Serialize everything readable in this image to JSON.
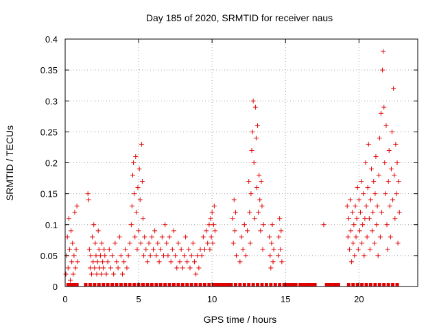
{
  "chart_data": {
    "type": "scatter",
    "title": "Day 185 of 2020, SRMTID for receiver naus",
    "xlabel": "GPS time / hours",
    "ylabel": "SRMTID / TECUs",
    "xlim": [
      0,
      24
    ],
    "ylim": [
      0,
      0.4
    ],
    "xticks": [
      0,
      5,
      10,
      15,
      20
    ],
    "yticks": [
      0,
      0.05,
      0.1,
      0.15,
      0.2,
      0.25,
      0.3,
      0.35,
      0.4
    ],
    "xtick_labels": [
      "0",
      "5",
      "10",
      "15",
      "20"
    ],
    "ytick_labels": [
      "0",
      "0.05",
      "0.1",
      "0.15",
      "0.2",
      "0.25",
      "0.3",
      "0.35",
      "0.4"
    ],
    "grid": true,
    "marker": "+",
    "color": "#e00000",
    "series": [
      {
        "name": "SRMTID",
        "points": [
          [
            0.05,
            0.02
          ],
          [
            0.1,
            0.05
          ],
          [
            0.15,
            0.08
          ],
          [
            0.2,
            0.03
          ],
          [
            0.25,
            0.11
          ],
          [
            0.3,
            0.06
          ],
          [
            0.35,
            0.01
          ],
          [
            0.4,
            0.09
          ],
          [
            0.45,
            0.04
          ],
          [
            0.5,
            0.07
          ],
          [
            0.55,
            0.02
          ],
          [
            0.6,
            0.05
          ],
          [
            0.65,
            0.12
          ],
          [
            0.7,
            0.03
          ],
          [
            0.75,
            0.06
          ],
          [
            0.8,
            0.13
          ],
          [
            0.85,
            0.04
          ],
          [
            1.55,
            0.15
          ],
          [
            1.6,
            0.14
          ],
          [
            1.65,
            0.06
          ],
          [
            1.7,
            0.03
          ],
          [
            1.75,
            0.05
          ],
          [
            1.8,
            0.02
          ],
          [
            1.85,
            0.08
          ],
          [
            1.9,
            0.04
          ],
          [
            1.95,
            0.1
          ],
          [
            2.0,
            0.03
          ],
          [
            2.05,
            0.07
          ],
          [
            2.1,
            0.05
          ],
          [
            2.15,
            0.02
          ],
          [
            2.2,
            0.04
          ],
          [
            2.25,
            0.09
          ],
          [
            2.3,
            0.06
          ],
          [
            2.35,
            0.03
          ],
          [
            2.4,
            0.05
          ],
          [
            2.45,
            0.02
          ],
          [
            2.5,
            0.07
          ],
          [
            2.55,
            0.04
          ],
          [
            2.6,
            0.03
          ],
          [
            2.65,
            0.06
          ],
          [
            2.7,
            0.05
          ],
          [
            2.8,
            0.02
          ],
          [
            2.9,
            0.04
          ],
          [
            3.0,
            0.06
          ],
          [
            3.1,
            0.03
          ],
          [
            3.2,
            0.05
          ],
          [
            3.3,
            0.02
          ],
          [
            3.4,
            0.07
          ],
          [
            3.5,
            0.04
          ],
          [
            3.6,
            0.03
          ],
          [
            3.7,
            0.08
          ],
          [
            3.8,
            0.05
          ],
          [
            3.9,
            0.02
          ],
          [
            4.0,
            0.04
          ],
          [
            4.1,
            0.06
          ],
          [
            4.2,
            0.03
          ],
          [
            4.3,
            0.05
          ],
          [
            4.4,
            0.07
          ],
          [
            4.5,
            0.1
          ],
          [
            4.55,
            0.13
          ],
          [
            4.6,
            0.18
          ],
          [
            4.65,
            0.2
          ],
          [
            4.7,
            0.15
          ],
          [
            4.75,
            0.08
          ],
          [
            4.8,
            0.21
          ],
          [
            4.85,
            0.12
          ],
          [
            4.9,
            0.06
          ],
          [
            4.95,
            0.16
          ],
          [
            5.0,
            0.09
          ],
          [
            5.05,
            0.19
          ],
          [
            5.1,
            0.14
          ],
          [
            5.15,
            0.07
          ],
          [
            5.2,
            0.23
          ],
          [
            5.25,
            0.17
          ],
          [
            5.3,
            0.11
          ],
          [
            5.35,
            0.05
          ],
          [
            5.4,
            0.08
          ],
          [
            5.5,
            0.06
          ],
          [
            5.6,
            0.04
          ],
          [
            5.7,
            0.07
          ],
          [
            5.8,
            0.05
          ],
          [
            5.9,
            0.08
          ],
          [
            6.0,
            0.06
          ],
          [
            6.1,
            0.09
          ],
          [
            6.2,
            0.05
          ],
          [
            6.3,
            0.07
          ],
          [
            6.4,
            0.04
          ],
          [
            6.5,
            0.06
          ],
          [
            6.6,
            0.08
          ],
          [
            6.7,
            0.05
          ],
          [
            6.8,
            0.1
          ],
          [
            6.9,
            0.07
          ],
          [
            7.0,
            0.05
          ],
          [
            7.1,
            0.08
          ],
          [
            7.2,
            0.04
          ],
          [
            7.3,
            0.06
          ],
          [
            7.4,
            0.09
          ],
          [
            7.5,
            0.05
          ],
          [
            7.6,
            0.03
          ],
          [
            7.7,
            0.07
          ],
          [
            7.8,
            0.04
          ],
          [
            7.9,
            0.06
          ],
          [
            8.0,
            0.03
          ],
          [
            8.1,
            0.05
          ],
          [
            8.2,
            0.08
          ],
          [
            8.3,
            0.04
          ],
          [
            8.4,
            0.06
          ],
          [
            8.5,
            0.03
          ],
          [
            8.6,
            0.05
          ],
          [
            8.7,
            0.07
          ],
          [
            8.8,
            0.04
          ],
          [
            8.9,
            0.02
          ],
          [
            9.0,
            0.05
          ],
          [
            9.1,
            0.03
          ],
          [
            9.2,
            0.06
          ],
          [
            9.3,
            0.05
          ],
          [
            9.4,
            0.08
          ],
          [
            9.5,
            0.06
          ],
          [
            9.6,
            0.09
          ],
          [
            9.7,
            0.07
          ],
          [
            9.8,
            0.1
          ],
          [
            9.85,
            0.06
          ],
          [
            9.9,
            0.11
          ],
          [
            9.95,
            0.08
          ],
          [
            10.0,
            0.12
          ],
          [
            10.05,
            0.07
          ],
          [
            10.1,
            0.1
          ],
          [
            10.15,
            0.13
          ],
          [
            10.2,
            0.09
          ],
          [
            11.4,
            0.11
          ],
          [
            11.45,
            0.07
          ],
          [
            11.5,
            0.14
          ],
          [
            11.55,
            0.09
          ],
          [
            11.6,
            0.12
          ],
          [
            11.65,
            0.05
          ],
          [
            11.9,
            0.04
          ],
          [
            12.0,
            0.08
          ],
          [
            12.1,
            0.06
          ],
          [
            12.2,
            0.1
          ],
          [
            12.3,
            0.05
          ],
          [
            12.4,
            0.09
          ],
          [
            12.5,
            0.17
          ],
          [
            12.55,
            0.12
          ],
          [
            12.6,
            0.07
          ],
          [
            12.65,
            0.15
          ],
          [
            12.7,
            0.22
          ],
          [
            12.75,
            0.25
          ],
          [
            12.8,
            0.3
          ],
          [
            12.85,
            0.2
          ],
          [
            12.9,
            0.11
          ],
          [
            12.95,
            0.29
          ],
          [
            13.0,
            0.24
          ],
          [
            13.05,
            0.16
          ],
          [
            13.1,
            0.26
          ],
          [
            13.15,
            0.12
          ],
          [
            13.2,
            0.18
          ],
          [
            13.25,
            0.14
          ],
          [
            13.3,
            0.09
          ],
          [
            13.35,
            0.17
          ],
          [
            13.4,
            0.13
          ],
          [
            13.45,
            0.06
          ],
          [
            13.5,
            0.1
          ],
          [
            13.9,
            0.08
          ],
          [
            13.95,
            0.05
          ],
          [
            14.0,
            0.03
          ],
          [
            14.05,
            0.07
          ],
          [
            14.1,
            0.1
          ],
          [
            14.15,
            0.04
          ],
          [
            14.2,
            0.06
          ],
          [
            14.5,
            0.05
          ],
          [
            14.55,
            0.08
          ],
          [
            14.6,
            0.11
          ],
          [
            14.65,
            0.06
          ],
          [
            14.7,
            0.09
          ],
          [
            14.75,
            0.04
          ],
          [
            17.6,
            0.1
          ],
          [
            19.2,
            0.13
          ],
          [
            19.25,
            0.08
          ],
          [
            19.3,
            0.11
          ],
          [
            19.35,
            0.06
          ],
          [
            19.4,
            0.14
          ],
          [
            19.45,
            0.09
          ],
          [
            19.5,
            0.04
          ],
          [
            19.55,
            0.12
          ],
          [
            19.6,
            0.07
          ],
          [
            19.65,
            0.1
          ],
          [
            19.7,
            0.05
          ],
          [
            19.75,
            0.13
          ],
          [
            19.8,
            0.08
          ],
          [
            19.85,
            0.11
          ],
          [
            19.9,
            0.16
          ],
          [
            19.95,
            0.06
          ],
          [
            20.0,
            0.14
          ],
          [
            20.05,
            0.09
          ],
          [
            20.1,
            0.12
          ],
          [
            20.15,
            0.17
          ],
          [
            20.2,
            0.07
          ],
          [
            20.25,
            0.1
          ],
          [
            20.3,
            0.15
          ],
          [
            20.35,
            0.05
          ],
          [
            20.4,
            0.11
          ],
          [
            20.45,
            0.2
          ],
          [
            20.5,
            0.13
          ],
          [
            20.55,
            0.08
          ],
          [
            20.6,
            0.16
          ],
          [
            20.65,
            0.23
          ],
          [
            20.7,
            0.11
          ],
          [
            20.75,
            0.06
          ],
          [
            20.8,
            0.14
          ],
          [
            20.85,
            0.19
          ],
          [
            20.9,
            0.09
          ],
          [
            20.95,
            0.12
          ],
          [
            21.0,
            0.17
          ],
          [
            21.05,
            0.07
          ],
          [
            21.1,
            0.15
          ],
          [
            21.15,
            0.21
          ],
          [
            21.2,
            0.1
          ],
          [
            21.25,
            0.13
          ],
          [
            21.3,
            0.05
          ],
          [
            21.35,
            0.18
          ],
          [
            21.4,
            0.24
          ],
          [
            21.45,
            0.08
          ],
          [
            21.5,
            0.28
          ],
          [
            21.55,
            0.12
          ],
          [
            21.6,
            0.35
          ],
          [
            21.65,
            0.38
          ],
          [
            21.7,
            0.29
          ],
          [
            21.75,
            0.2
          ],
          [
            21.8,
            0.15
          ],
          [
            21.85,
            0.26
          ],
          [
            21.9,
            0.1
          ],
          [
            21.95,
            0.06
          ],
          [
            22.0,
            0.17
          ],
          [
            22.05,
            0.22
          ],
          [
            22.1,
            0.13
          ],
          [
            22.15,
            0.08
          ],
          [
            22.2,
            0.19
          ],
          [
            22.25,
            0.25
          ],
          [
            22.3,
            0.14
          ],
          [
            22.35,
            0.32
          ],
          [
            22.4,
            0.18
          ],
          [
            22.45,
            0.11
          ],
          [
            22.5,
            0.23
          ],
          [
            22.55,
            0.15
          ],
          [
            22.6,
            0.2
          ],
          [
            22.65,
            0.07
          ],
          [
            22.7,
            0.17
          ],
          [
            22.75,
            0.12
          ]
        ]
      }
    ],
    "zero_markers_x": [
      0.2,
      0.4,
      0.6,
      0.8,
      1.4,
      1.7,
      2.0,
      2.3,
      2.6,
      2.9,
      3.2,
      3.5,
      3.8,
      4.1,
      4.4,
      4.7,
      5.0,
      5.3,
      5.6,
      5.9,
      6.2,
      6.5,
      6.8,
      7.1,
      7.4,
      7.7,
      8.0,
      8.3,
      8.6,
      8.9,
      9.2,
      9.5,
      9.8,
      10.1,
      10.3,
      10.5,
      10.7,
      10.9,
      11.1,
      11.3,
      11.6,
      11.9,
      12.2,
      12.5,
      12.8,
      13.1,
      13.4,
      13.7,
      14.0,
      14.3,
      14.6,
      14.9,
      15.1,
      15.3,
      15.5,
      15.7,
      16.0,
      16.2,
      16.4,
      16.6,
      16.8,
      17.0,
      17.8,
      18.0,
      18.2,
      18.4,
      18.6,
      19.3,
      19.6,
      19.9,
      20.2,
      20.5,
      20.8,
      21.1,
      21.4,
      21.7,
      22.0,
      22.3,
      22.6
    ]
  }
}
